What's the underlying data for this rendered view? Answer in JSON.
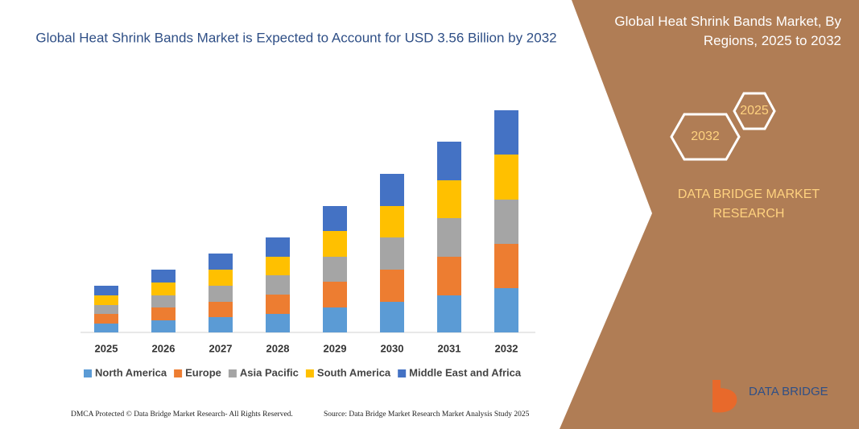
{
  "chart_data": {
    "type": "stacked-bar",
    "title": "Global Heat Shrink Bands Market is Expected to Account for USD 3.56 Billion by 2032",
    "categories": [
      "2025",
      "2026",
      "2027",
      "2028",
      "2029",
      "2030",
      "2031",
      "2032"
    ],
    "series": [
      {
        "name": "North America",
        "color": "#5b9bd5",
        "values": [
          11,
          15,
          19,
          23,
          31,
          38,
          46,
          55
        ]
      },
      {
        "name": "Europe",
        "color": "#ed7d31",
        "values": [
          12,
          16,
          19,
          24,
          32,
          40,
          48,
          55
        ]
      },
      {
        "name": "Asia Pacific",
        "color": "#a5a5a5",
        "values": [
          11,
          15,
          20,
          24,
          31,
          40,
          48,
          55
        ]
      },
      {
        "name": "South America",
        "color": "#ffc000",
        "values": [
          12,
          16,
          20,
          23,
          32,
          39,
          47,
          56
        ]
      },
      {
        "name": "Middle East and Africa",
        "color": "#4472c4",
        "values": [
          12,
          16,
          20,
          24,
          31,
          40,
          48,
          55
        ]
      }
    ]
  },
  "panel": {
    "title": "Global Heat Shrink Bands Market, By Regions, 2025 to 2032",
    "hex_back": "2025",
    "hex_front": "2032",
    "brand": "DATA BRIDGE MARKET RESEARCH",
    "logo": "DATA BRIDGE"
  },
  "footer": {
    "left": "DMCA Protected © Data Bridge Market Research- All Rights Reserved.",
    "right": "Source: Data Bridge Market Research Market Analysis Study 2025"
  }
}
